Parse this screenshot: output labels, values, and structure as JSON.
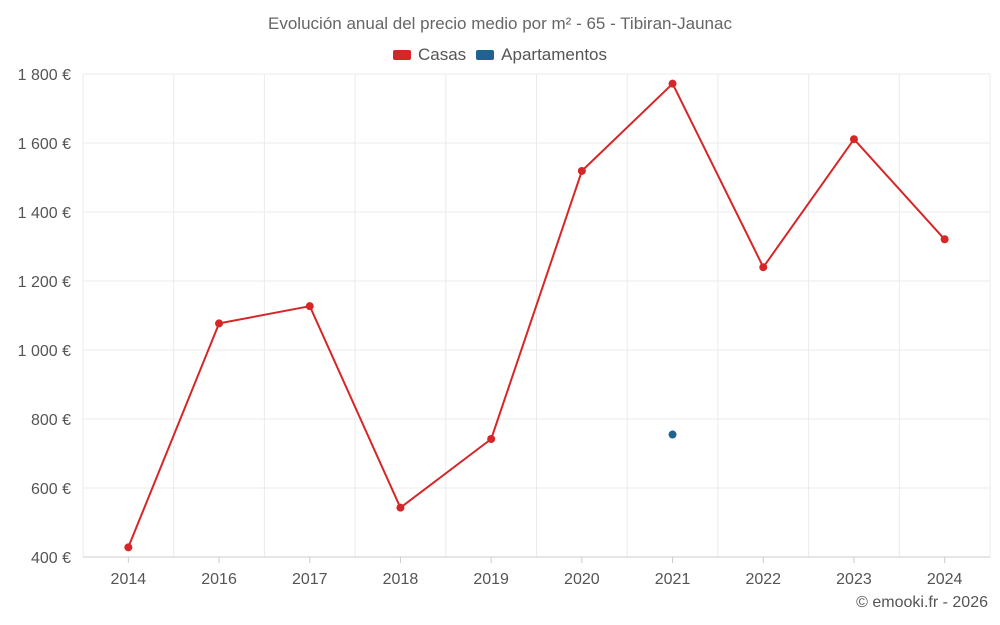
{
  "chart_data": {
    "type": "line",
    "title": "Evolución anual del precio medio por m² - 65 - Tibiran-Jaunac",
    "categories": [
      "2014",
      "2016",
      "2017",
      "2018",
      "2019",
      "2020",
      "2021",
      "2022",
      "2023",
      "2024"
    ],
    "series": [
      {
        "name": "Casas",
        "color": "#d62728",
        "values": [
          428,
          1077,
          1127,
          543,
          742,
          1519,
          1772,
          1240,
          1611,
          1321
        ]
      },
      {
        "name": "Apartamentos",
        "color": "#1f6391",
        "values": [
          null,
          null,
          null,
          null,
          null,
          null,
          755,
          null,
          null,
          null
        ]
      }
    ],
    "ylim": [
      400,
      1800
    ],
    "yticks": [
      {
        "value": 400,
        "label": "400 €"
      },
      {
        "value": 600,
        "label": "600 €"
      },
      {
        "value": 800,
        "label": "800 €"
      },
      {
        "value": 1000,
        "label": "1 000 €"
      },
      {
        "value": 1200,
        "label": "1 200 €"
      },
      {
        "value": 1400,
        "label": "1 400 €"
      },
      {
        "value": 1600,
        "label": "1 600 €"
      },
      {
        "value": 1800,
        "label": "1 800 €"
      }
    ],
    "xlabel": "",
    "ylabel": "",
    "grid": true,
    "legend_position": "top-center"
  },
  "credit": "© emooki.fr - 2026"
}
